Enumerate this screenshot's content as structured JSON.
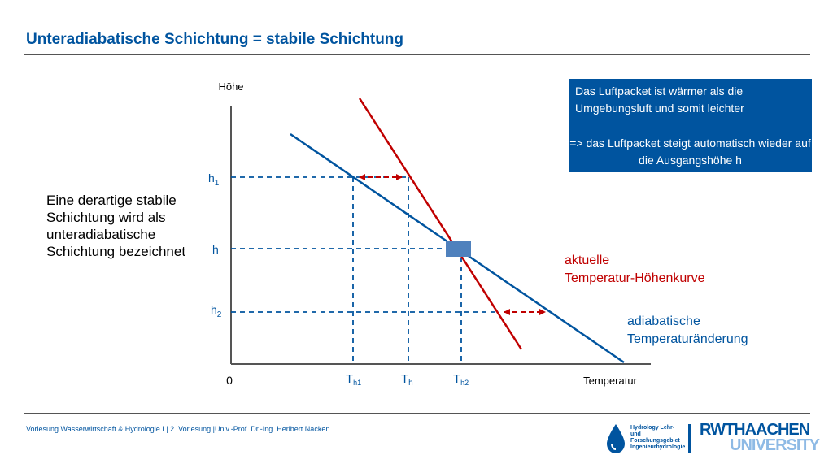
{
  "slide": {
    "title": "Unteradiabatische Schichtung = stabile Schichtung",
    "footer": "Vorlesung Wasserwirtschaft & Hydrologie I | 2. Vorlesung |Univ.-Prof. Dr.-Ing. Heribert Nacken"
  },
  "left_text": "Eine derartige stabile Schichtung wird als unteradiabatische Schichtung bezeichnet",
  "infobox": {
    "line1": "Das Luftpacket ist wärmer als die Umgebungsluft und somit leichter",
    "line2": "=> das Luftpacket steigt automatisch wieder auf die Ausgangshöhe h"
  },
  "diagram": {
    "y_axis_label": "Höhe",
    "x_axis_label": "Temperatur",
    "origin_label": "0",
    "heights": {
      "h1": "h",
      "h1_sub": "1",
      "h": "h",
      "h2": "h",
      "h2_sub": "2"
    },
    "temps": {
      "th1": "T",
      "th1_sub": "h1",
      "th": "T",
      "th_sub": "h",
      "th2": "T",
      "th2_sub": "h2"
    },
    "red_curve_label_1": "aktuelle",
    "red_curve_label_2": "Temperatur-Höhenkurve",
    "blue_curve_label_1": "adiabatische",
    "blue_curve_label_2": "Temperaturänderung",
    "colors": {
      "red": "#c00000",
      "blue": "#00549f",
      "parcel": "#4f81bd"
    }
  },
  "logos": {
    "hydro_text": "Hydrology Lehr- und Forschungsgebiet Ingenieurhydrologie",
    "rwth_line1": "RWTHAACHEN",
    "rwth_line2": "UNIVERSITY"
  }
}
